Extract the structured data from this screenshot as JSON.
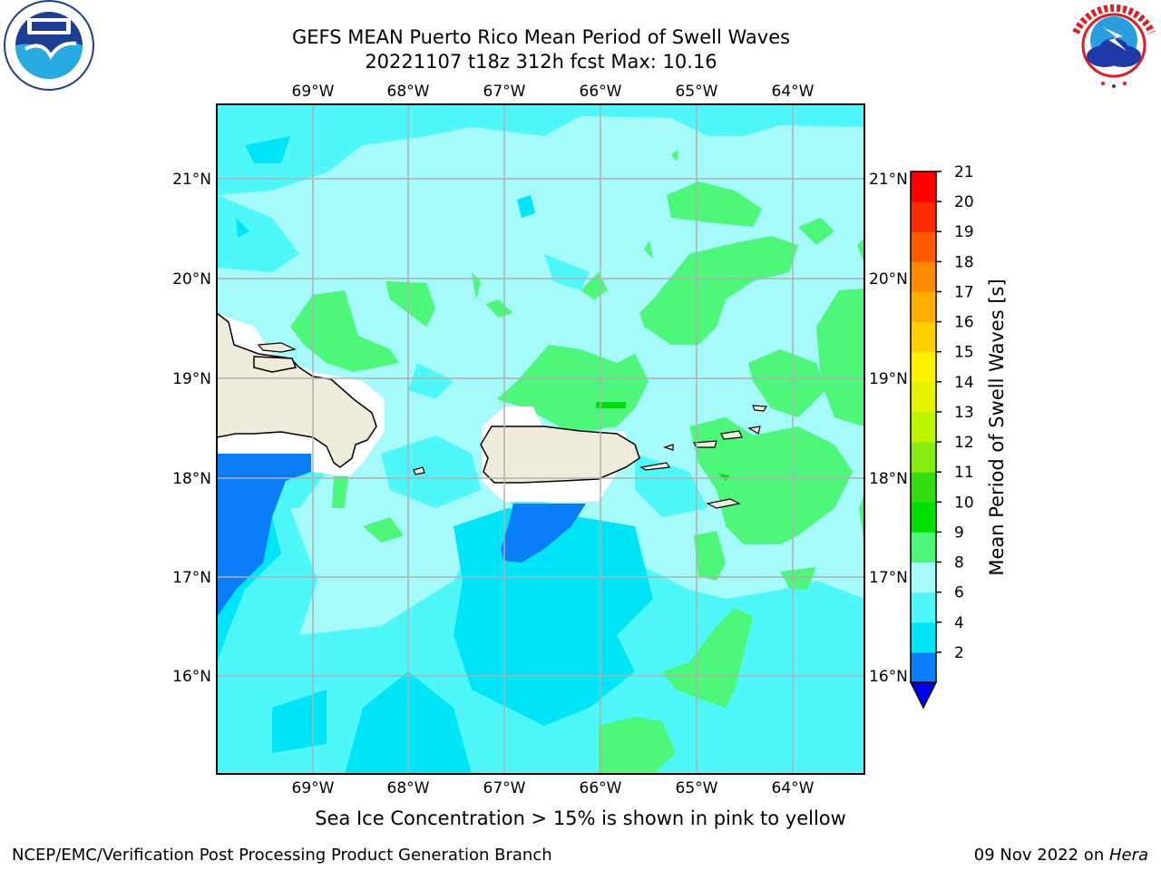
{
  "title_line1": "GEFS MEAN Puerto Rico Mean Period of Swell Waves",
  "title_line2": "20221107 t18z 312h fcst   Max: 10.16",
  "lon_labels": [
    "69°W",
    "68°W",
    "67°W",
    "66°W",
    "65°W",
    "64°W"
  ],
  "lat_labels": [
    "21°N",
    "20°N",
    "19°N",
    "18°N",
    "17°N",
    "16°N"
  ],
  "colorbar": {
    "label": "Mean Period of Swell Waves [s]",
    "ticks": [
      "21",
      "20",
      "19",
      "18",
      "17",
      "16",
      "15",
      "14",
      "13",
      "12",
      "11",
      "10",
      "9",
      "8",
      "6",
      "4",
      "2"
    ],
    "bands": [
      {
        "from": "2",
        "to": "4",
        "color": "#0a7df8"
      },
      {
        "from": "4",
        "to": "6",
        "color": "#00e5f7"
      },
      {
        "from": "6",
        "to": "8",
        "color": "#4ef8f8"
      },
      {
        "from": "8",
        "to": "9",
        "color": "#a5fafa"
      },
      {
        "from": "9",
        "to": "10",
        "color": "#4cf77a"
      },
      {
        "from": "10",
        "to": "11",
        "color": "#00e000"
      },
      {
        "from": "11",
        "to": "12",
        "color": "#33dd11"
      },
      {
        "from": "12",
        "to": "13",
        "color": "#88ee11"
      },
      {
        "from": "13",
        "to": "14",
        "color": "#bbf500"
      },
      {
        "from": "14",
        "to": "15",
        "color": "#e6f200"
      },
      {
        "from": "15",
        "to": "16",
        "color": "#fff200"
      },
      {
        "from": "16",
        "to": "17",
        "color": "#ffd000"
      },
      {
        "from": "17",
        "to": "18",
        "color": "#ffae00"
      },
      {
        "from": "18",
        "to": "19",
        "color": "#ff8c00"
      },
      {
        "from": "19",
        "to": "20",
        "color": "#ff5a00"
      },
      {
        "from": "20",
        "to": "21",
        "color": "#ff2a00"
      },
      {
        "from": "21",
        "to": "",
        "color": "#ff0000"
      }
    ],
    "under_color": "#0000ee"
  },
  "land_color": "#efecdc",
  "grid_color": "#b0b0b0",
  "note": "Sea Ice Concentration > 15% is shown in pink to yellow",
  "footer_left": "NCEP/EMC/Verification Post Processing Product Generation Branch",
  "footer_right_date": "09 Nov 2022 on ",
  "footer_right_host": "Hera",
  "logos": {
    "left": "noaa-logo",
    "right": "nws-logo"
  }
}
